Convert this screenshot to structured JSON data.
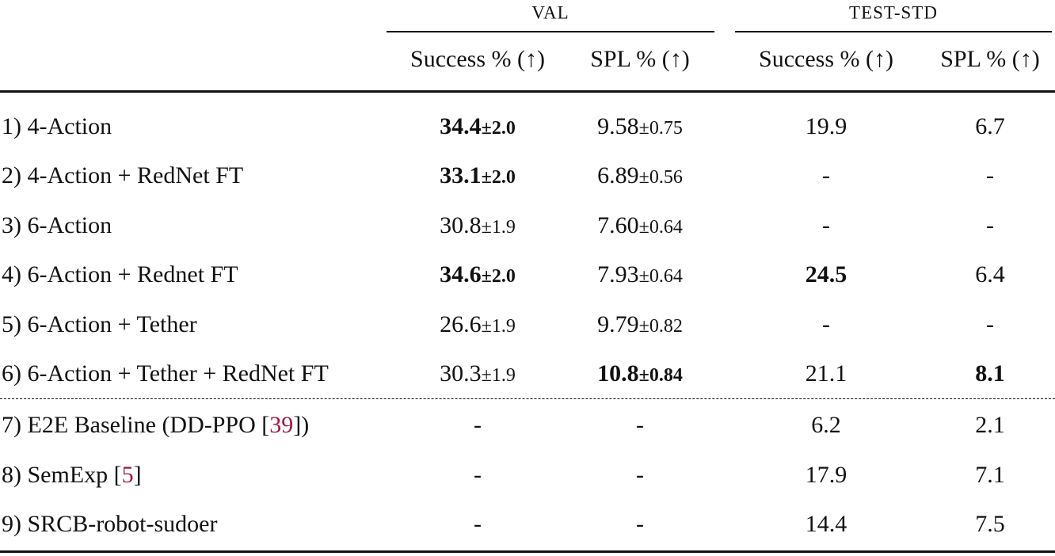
{
  "table": {
    "groups": [
      "VAL",
      "TEST-STD"
    ],
    "columns": [
      "Success % (↑)",
      "SPL % (↑)",
      "Success % (↑)",
      "SPL % (↑)"
    ],
    "rows": [
      {
        "label": "1) 4-Action",
        "cells": [
          {
            "value": "34.4",
            "pm": "±2.0",
            "bold": true
          },
          {
            "value": "9.58",
            "pm": "±0.75"
          },
          {
            "value": "19.9"
          },
          {
            "value": "6.7"
          }
        ]
      },
      {
        "label": "2) 4-Action + RedNet FT",
        "cells": [
          {
            "value": "33.1",
            "pm": "±2.0",
            "bold": true
          },
          {
            "value": "6.89",
            "pm": "±0.56"
          },
          {
            "value": "-"
          },
          {
            "value": "-"
          }
        ]
      },
      {
        "label": "3) 6-Action",
        "cells": [
          {
            "value": "30.8",
            "pm": "±1.9"
          },
          {
            "value": "7.60",
            "pm": "±0.64"
          },
          {
            "value": "-"
          },
          {
            "value": "-"
          }
        ]
      },
      {
        "label": "4) 6-Action + Rednet FT",
        "cells": [
          {
            "value": "34.6",
            "pm": "±2.0",
            "bold": true
          },
          {
            "value": "7.93",
            "pm": "±0.64"
          },
          {
            "value": "24.5",
            "bold": true
          },
          {
            "value": "6.4"
          }
        ]
      },
      {
        "label": "5) 6-Action + Tether",
        "cells": [
          {
            "value": "26.6",
            "pm": "±1.9"
          },
          {
            "value": "9.79",
            "pm": "±0.82"
          },
          {
            "value": "-"
          },
          {
            "value": "-"
          }
        ]
      },
      {
        "label": "6) 6-Action + Tether + RedNet FT",
        "cells": [
          {
            "value": "30.3",
            "pm": "±1.9"
          },
          {
            "value": "10.8",
            "pm": "±0.84",
            "bold": true
          },
          {
            "value": "21.1"
          },
          {
            "value": "8.1",
            "bold": true
          }
        ]
      },
      {
        "label": "7) E2E Baseline (DD-PPO [",
        "cite": "39",
        "label_end": "])",
        "cells": [
          {
            "value": "-"
          },
          {
            "value": "-"
          },
          {
            "value": "6.2"
          },
          {
            "value": "2.1"
          }
        ]
      },
      {
        "label": "8) SemExp [",
        "cite": "5",
        "label_end": "]",
        "cells": [
          {
            "value": "-"
          },
          {
            "value": "-"
          },
          {
            "value": "17.9"
          },
          {
            "value": "7.1"
          }
        ]
      },
      {
        "label": "9) SRCB-robot-sudoer",
        "cells": [
          {
            "value": "-"
          },
          {
            "value": "-"
          },
          {
            "value": "14.4"
          },
          {
            "value": "7.5"
          }
        ]
      }
    ]
  }
}
